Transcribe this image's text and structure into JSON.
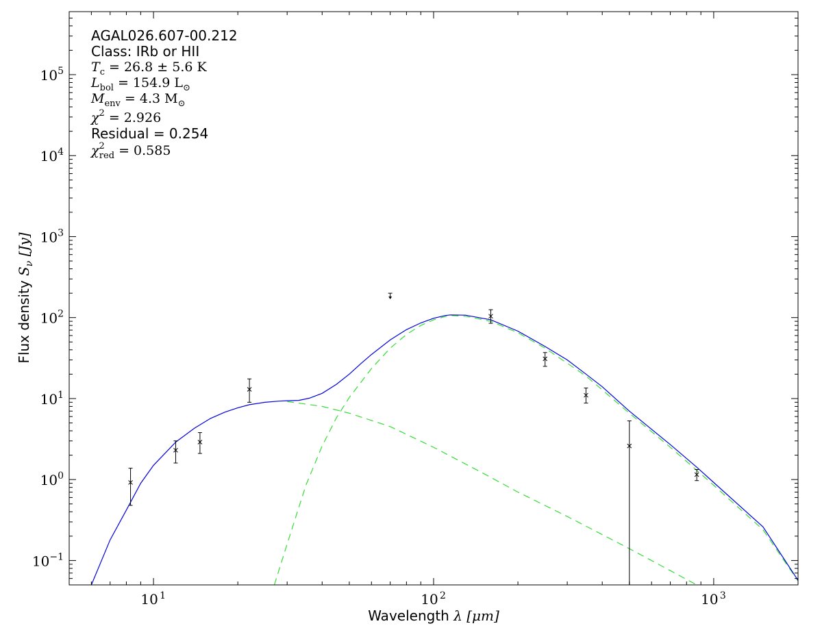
{
  "chart_data": {
    "type": "scatter",
    "xscale": "log",
    "yscale": "log",
    "xlim": [
      5,
      2000
    ],
    "ylim": [
      0.05,
      600000
    ],
    "xlabel_prefix": "Wavelength ",
    "xlabel_math": "λ [μm]",
    "ylabel_prefix": "Flux density ",
    "ylabel_math": "S",
    "ylabel_sub": "ν",
    "ylabel_unit": " [Jy]",
    "x_ticks": [
      {
        "value": 10,
        "base": "10",
        "exp": "1"
      },
      {
        "value": 100,
        "base": "10",
        "exp": "2"
      },
      {
        "value": 1000,
        "base": "10",
        "exp": "3"
      }
    ],
    "y_ticks": [
      {
        "value": 0.1,
        "base": "10",
        "exp": "−1"
      },
      {
        "value": 1,
        "base": "10",
        "exp": "0"
      },
      {
        "value": 10,
        "base": "10",
        "exp": "1"
      },
      {
        "value": 100,
        "base": "10",
        "exp": "2"
      },
      {
        "value": 1000,
        "base": "10",
        "exp": "3"
      },
      {
        "value": 10000,
        "base": "10",
        "exp": "4"
      },
      {
        "value": 100000,
        "base": "10",
        "exp": "5"
      }
    ],
    "annotations": {
      "source": "AGAL026.607-00.212",
      "class": "Class: IRb or HII",
      "tc_sym": "T",
      "tc_sub": "c",
      "tc_val": " = 26.8 ± 5.6 K",
      "lbol_sym": "L",
      "lbol_sub": "bol",
      "lbol_val": " = 154.9 L",
      "lbol_unit_sub": "⊙",
      "menv_sym": "M",
      "menv_sub": "env",
      "menv_val": " = 4.3 M",
      "menv_unit_sub": "⊙",
      "chi2_sym": "χ",
      "chi2_sup": "2",
      "chi2_val": " = 2.926",
      "residual": "Residual = 0.254",
      "chired_sym": "χ",
      "chired_sup": "2",
      "chired_sub": "red",
      "chired_val": " = 0.585"
    },
    "points": [
      {
        "x": 8.28,
        "y": 0.92,
        "ylo": 0.48,
        "yhi": 1.38
      },
      {
        "x": 12,
        "y": 2.3,
        "ylo": 1.6,
        "yhi": 3.0
      },
      {
        "x": 14.65,
        "y": 2.9,
        "ylo": 2.1,
        "yhi": 3.8
      },
      {
        "x": 22,
        "y": 13.0,
        "ylo": 9.0,
        "yhi": 17.5
      },
      {
        "x": 160,
        "y": 104,
        "ylo": 85,
        "yhi": 125
      },
      {
        "x": 250,
        "y": 31,
        "ylo": 25,
        "yhi": 37
      },
      {
        "x": 350,
        "y": 11,
        "ylo": 8.8,
        "yhi": 13.5
      },
      {
        "x": 500,
        "y": 2.6,
        "ylo": 0.05,
        "yhi": 5.3
      },
      {
        "x": 870,
        "y": 1.15,
        "ylo": 0.97,
        "yhi": 1.33
      }
    ],
    "upper_limits": [
      {
        "x": 70,
        "y": 200,
        "y_arrow": 172
      }
    ],
    "series": [
      {
        "style": "dashed",
        "color": "#33dd33",
        "x": [
          27,
          30,
          35,
          40,
          45,
          50,
          60,
          70,
          80,
          90,
          100,
          110,
          115,
          130,
          160,
          200,
          250,
          350,
          500,
          700,
          870,
          1000,
          1500,
          2000
        ],
        "y": [
          0.05,
          0.16,
          0.85,
          2.6,
          5.8,
          10.3,
          23.5,
          42,
          62,
          80,
          94,
          103,
          106,
          104,
          90,
          65,
          42,
          19,
          6.6,
          2.5,
          1.3,
          0.85,
          0.24,
          0.056
        ]
      },
      {
        "style": "dashed",
        "color": "#33dd33",
        "x": [
          30,
          40,
          50,
          70,
          100,
          150,
          200,
          300,
          500,
          700,
          870
        ],
        "y": [
          9.2,
          8.0,
          6.6,
          4.5,
          2.5,
          1.2,
          0.7,
          0.35,
          0.14,
          0.075,
          0.05
        ]
      },
      {
        "style": "solid",
        "color": "#0000dd",
        "x": [
          6,
          7,
          8,
          9,
          10,
          12,
          14,
          16,
          18,
          20,
          22,
          25,
          28,
          30,
          33,
          36,
          40,
          45,
          50,
          55,
          60,
          70,
          80,
          90,
          100,
          110,
          115,
          130,
          160,
          200,
          250,
          300,
          350,
          400,
          500,
          700,
          870,
          1000,
          1500,
          2000
        ],
        "y": [
          0.05,
          0.18,
          0.42,
          0.9,
          1.5,
          2.9,
          4.3,
          5.7,
          6.8,
          7.7,
          8.4,
          9.0,
          9.3,
          9.4,
          9.5,
          10.1,
          11.6,
          15,
          20,
          27,
          35,
          53,
          71,
          86,
          98,
          106,
          108,
          107,
          94,
          68,
          44,
          30,
          20,
          14,
          7.0,
          2.7,
          1.42,
          0.92,
          0.26,
          0.057
        ]
      }
    ]
  }
}
